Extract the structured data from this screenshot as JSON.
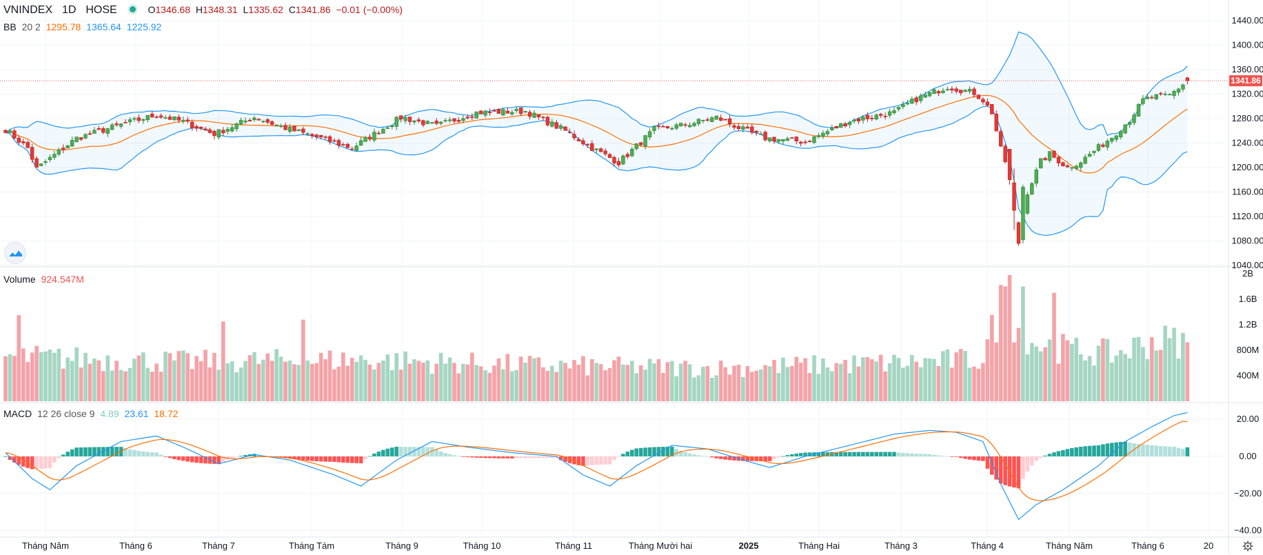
{
  "header": {
    "symbol": "VNINDEX",
    "interval": "1D",
    "exchange": "HOSE",
    "open_label": "O",
    "open": "1346.68",
    "high_label": "H",
    "high": "1348.31",
    "low_label": "L",
    "low": "1335.62",
    "close_label": "C",
    "close": "1341.86",
    "change": "−0.01 (−0.00%)"
  },
  "bb_legend": {
    "name": "BB",
    "params": "20 2",
    "basis": "1295.78",
    "upper": "1365.64",
    "lower": "1225.92"
  },
  "volume_legend": {
    "name": "Volume",
    "value": "924.547M"
  },
  "macd_legend": {
    "name": "MACD",
    "params": "12 26 close 9",
    "hist": "4.89",
    "macd": "23.61",
    "signal": "18.72"
  },
  "price_badge": "1341.86",
  "colors": {
    "up": "#26a69a",
    "down": "#ef5350",
    "up_body": "#4caf50",
    "down_body": "#e53935",
    "bb_band": "#2196f3",
    "bb_basis": "#ff6d00",
    "vol_up": "#a5d6c2",
    "vol_down": "#f4a3a8",
    "macd_line": "#2196f3",
    "signal_line": "#ff6d00",
    "hist_up_strong": "#26a69a",
    "hist_up_weak": "#b2dfdb",
    "hist_down_strong": "#ff5252",
    "hist_down_weak": "#ffcdd2"
  },
  "chart_data": {
    "type": "candlestick",
    "x_axis_labels": [
      "Tháng Năm",
      "Tháng 6",
      "Tháng 7",
      "Tháng Tám",
      "Tháng 9",
      "Tháng 10",
      "Tháng 11",
      "Tháng Mười hai",
      "2025",
      "Tháng Hai",
      "Tháng 3",
      "Tháng 4",
      "Tháng Năm",
      "Tháng 6",
      "20"
    ],
    "price_axis": {
      "ticks": [
        "1440.00",
        "1400.00",
        "1360.00",
        "1320.00",
        "1280.00",
        "1240.00",
        "1200.00",
        "1160.00",
        "1120.00",
        "1080.00",
        "1040.00"
      ],
      "range": [
        1040,
        1440
      ]
    },
    "volume_axis": {
      "ticks": [
        "2B",
        "1.6B",
        "1.2B",
        "800M",
        "400M"
      ],
      "range": [
        0,
        2000000000
      ]
    },
    "macd_axis": {
      "ticks": [
        "20.00",
        "0.00",
        "−20.00",
        "−40.00"
      ],
      "range": [
        -40,
        20
      ]
    },
    "price_anchors": [
      [
        0,
        1262
      ],
      [
        5,
        1232
      ],
      [
        7,
        1198
      ],
      [
        10,
        1215
      ],
      [
        16,
        1248
      ],
      [
        26,
        1270
      ],
      [
        34,
        1286
      ],
      [
        40,
        1275
      ],
      [
        47,
        1255
      ],
      [
        56,
        1282
      ],
      [
        64,
        1262
      ],
      [
        71,
        1248
      ],
      [
        78,
        1232
      ],
      [
        89,
        1282
      ],
      [
        97,
        1268
      ],
      [
        106,
        1290
      ],
      [
        117,
        1292
      ],
      [
        126,
        1260
      ],
      [
        132,
        1232
      ],
      [
        138,
        1208
      ],
      [
        146,
        1262
      ],
      [
        153,
        1270
      ],
      [
        160,
        1282
      ],
      [
        166,
        1262
      ],
      [
        171,
        1248
      ],
      [
        180,
        1242
      ],
      [
        190,
        1276
      ],
      [
        200,
        1290
      ],
      [
        205,
        1312
      ],
      [
        212,
        1332
      ],
      [
        218,
        1322
      ],
      [
        220,
        1310
      ],
      [
        222,
        1290
      ],
      [
        224,
        1230
      ],
      [
        226,
        1190
      ],
      [
        227,
        1140
      ],
      [
        228,
        1095
      ],
      [
        230,
        1160
      ],
      [
        233,
        1210
      ],
      [
        235,
        1222
      ],
      [
        239,
        1200
      ],
      [
        242,
        1210
      ],
      [
        249,
        1250
      ],
      [
        253,
        1278
      ],
      [
        256,
        1310
      ],
      [
        258,
        1315
      ],
      [
        262,
        1318
      ],
      [
        266,
        1342
      ]
    ],
    "volume_anchors": [
      [
        0,
        700
      ],
      [
        10,
        680
      ],
      [
        40,
        620
      ],
      [
        80,
        650
      ],
      [
        120,
        560
      ],
      [
        160,
        520
      ],
      [
        200,
        600
      ],
      [
        220,
        660
      ],
      [
        224,
        1500
      ],
      [
        228,
        1200
      ],
      [
        232,
        900
      ],
      [
        240,
        800
      ],
      [
        250,
        740
      ],
      [
        258,
        950
      ],
      [
        266,
        930
      ]
    ],
    "macd_anchors": [
      [
        0,
        2
      ],
      [
        6,
        -12
      ],
      [
        10,
        -18
      ],
      [
        16,
        -5
      ],
      [
        26,
        8
      ],
      [
        34,
        11
      ],
      [
        40,
        5
      ],
      [
        48,
        -4
      ],
      [
        56,
        1
      ],
      [
        64,
        -2
      ],
      [
        74,
        -10
      ],
      [
        80,
        -16
      ],
      [
        88,
        -2
      ],
      [
        96,
        8
      ],
      [
        104,
        5
      ],
      [
        114,
        2
      ],
      [
        124,
        0
      ],
      [
        130,
        -10
      ],
      [
        136,
        -16
      ],
      [
        142,
        -5
      ],
      [
        150,
        6
      ],
      [
        158,
        4
      ],
      [
        166,
        -2
      ],
      [
        172,
        -6
      ],
      [
        180,
        0
      ],
      [
        190,
        6
      ],
      [
        200,
        12
      ],
      [
        208,
        14
      ],
      [
        214,
        13
      ],
      [
        220,
        8
      ],
      [
        224,
        -15
      ],
      [
        228,
        -34
      ],
      [
        232,
        -26
      ],
      [
        238,
        -18
      ],
      [
        246,
        -5
      ],
      [
        252,
        8
      ],
      [
        258,
        16
      ],
      [
        263,
        22
      ],
      [
        266,
        23.6
      ]
    ],
    "last": {
      "open": 1346.68,
      "high": 1348.31,
      "low": 1335.62,
      "close": 1341.86,
      "volume": 924547000,
      "bb_basis": 1295.78,
      "bb_upper": 1365.64,
      "bb_lower": 1225.92,
      "macd": 23.61,
      "signal": 18.72,
      "histogram": 4.89
    }
  }
}
